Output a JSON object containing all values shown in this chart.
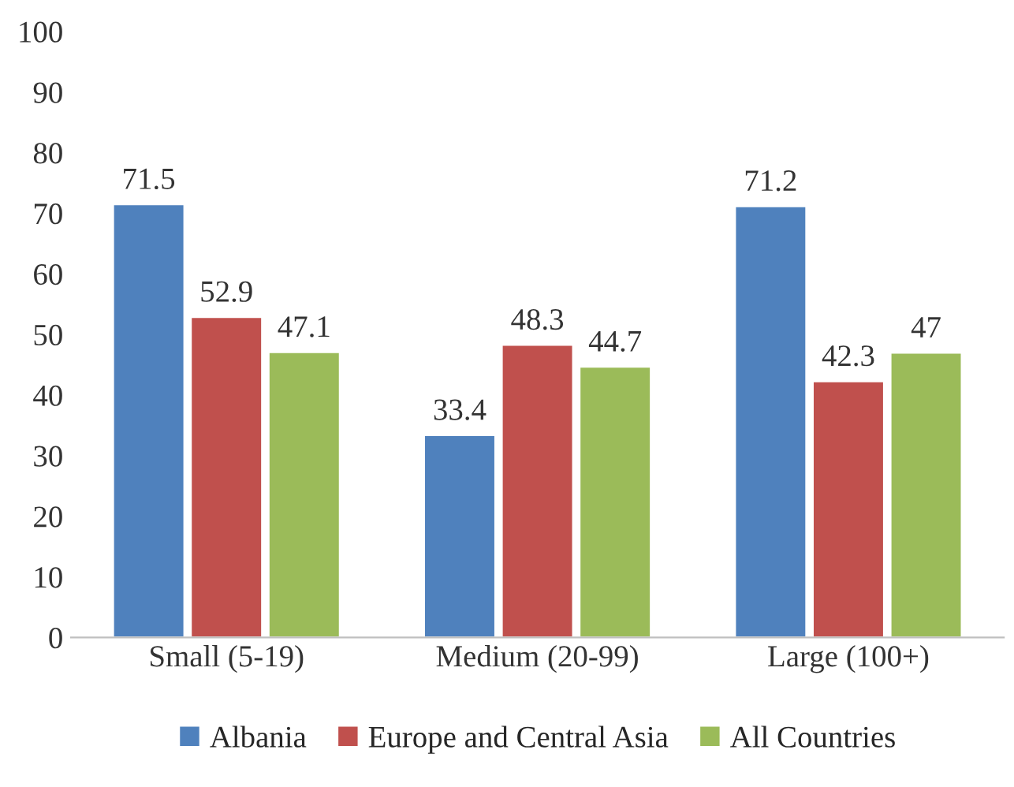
{
  "chart_data": {
    "type": "bar",
    "categories": [
      "Small (5-19)",
      "Medium (20-99)",
      "Large (100+)"
    ],
    "series": [
      {
        "name": "Albania",
        "color": "#4f81bd",
        "values": [
          71.5,
          33.4,
          71.2
        ]
      },
      {
        "name": "Europe and Central Asia",
        "color": "#c0504d",
        "values": [
          52.9,
          48.3,
          42.3
        ]
      },
      {
        "name": "All Countries",
        "color": "#9bbb59",
        "values": [
          47.1,
          44.7,
          47
        ]
      }
    ],
    "ylim": [
      0,
      100
    ],
    "yticks": [
      0,
      10,
      20,
      30,
      40,
      50,
      60,
      70,
      80,
      90,
      100
    ],
    "data_labels": true,
    "legend": "bottom",
    "grid": false
  }
}
